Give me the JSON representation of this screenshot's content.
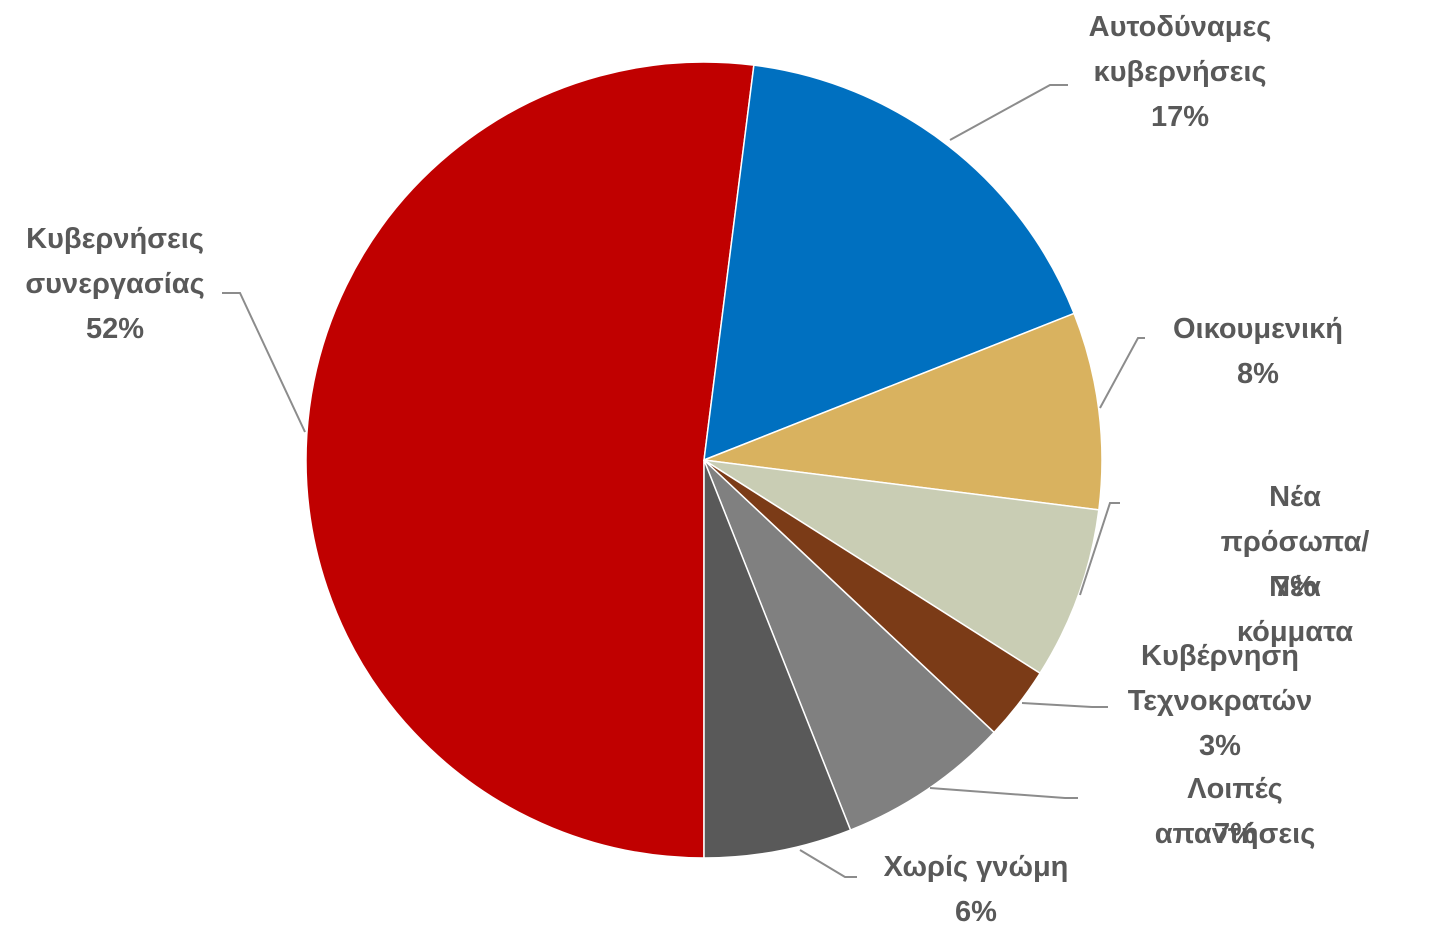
{
  "chart_data": {
    "type": "pie",
    "categories": [
      "Κυβερνήσεις\nσυνεργασίας",
      "Αυτοδύναμες\nκυβερνήσεις",
      "Οικουμενική",
      "Νέα πρόσωπα/Νέα\nκόμματα",
      "Κυβέρνηση\nΤεχνοκρατών",
      "Λοιπές απαντήσεις",
      "Χωρίς γνώμη"
    ],
    "values": [
      52,
      17,
      8,
      7,
      3,
      7,
      6
    ],
    "value_labels": [
      "52%",
      "17%",
      "8%",
      "7%",
      "3%",
      "7%",
      "6%"
    ],
    "colors": [
      "#c00000",
      "#0070c0",
      "#d9b25f",
      "#c9cdb4",
      "#7b3b17",
      "#808080",
      "#595959"
    ]
  }
}
